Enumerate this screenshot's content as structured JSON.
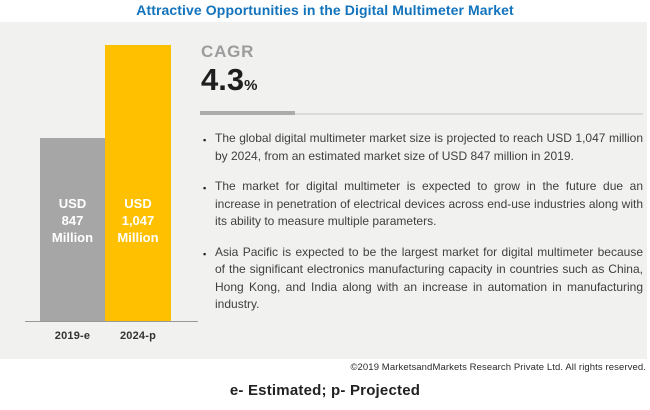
{
  "title": "Attractive Opportunities in the Digital Multimeter Market",
  "panel": {
    "cagr": {
      "label": "CAGR",
      "value": "4.3",
      "unit": "%"
    },
    "bullets": [
      "The global digital multimeter market size is projected to reach USD 1,047 million by 2024, from an estimated market size of USD 847 million in 2019.",
      "The market for digital multimeter is expected to grow in the future due an increase in penetration of electrical devices across end-use industries along with its ability to measure multiple parameters.",
      "Asia Pacific is expected to be the largest market for digital multimeter because of the significant electronics manufacturing capacity in countries such as China, Hong Kong, and India along with an increase in automation in manufacturing industry."
    ]
  },
  "chart": {
    "bars": [
      {
        "category": "2019-e",
        "value_label_lines": [
          "USD",
          "847",
          "Million"
        ],
        "color": "#A6A6A6"
      },
      {
        "category": "2024-p",
        "value_label_lines": [
          "USD",
          "1,047",
          "Million"
        ],
        "color": "#FFC000"
      }
    ]
  },
  "footer": {
    "copyright": "©2019 MarketsandMarkets Research Private Ltd. All rights reserved.",
    "note": "e- Estimated; p- Projected"
  },
  "colors": {
    "title_blue": "#1273BD",
    "bar_2019_gray": "#A6A6A6",
    "bar_2024_yellow": "#FFC000",
    "panel_background": "#F1F1F0",
    "bar_label_text": "#FFFFFF"
  },
  "chart_data": {
    "type": "bar",
    "title": "Attractive Opportunities in the Digital Multimeter Market",
    "categories": [
      "2019-e",
      "2024-p"
    ],
    "values": [
      847,
      1047
    ],
    "unit": "USD Million",
    "bar_colors": [
      "#A6A6A6",
      "#FFC000"
    ],
    "data_labels": [
      "USD 847 Million",
      "USD 1,047 Million"
    ],
    "cagr_percent": 4.3,
    "xlabel": "",
    "ylabel": "",
    "ylim": [
      0,
      1100
    ],
    "grid": false,
    "legend_position": "none",
    "annotations": [
      "CAGR 4.3%",
      "e- Estimated; p- Projected"
    ]
  }
}
